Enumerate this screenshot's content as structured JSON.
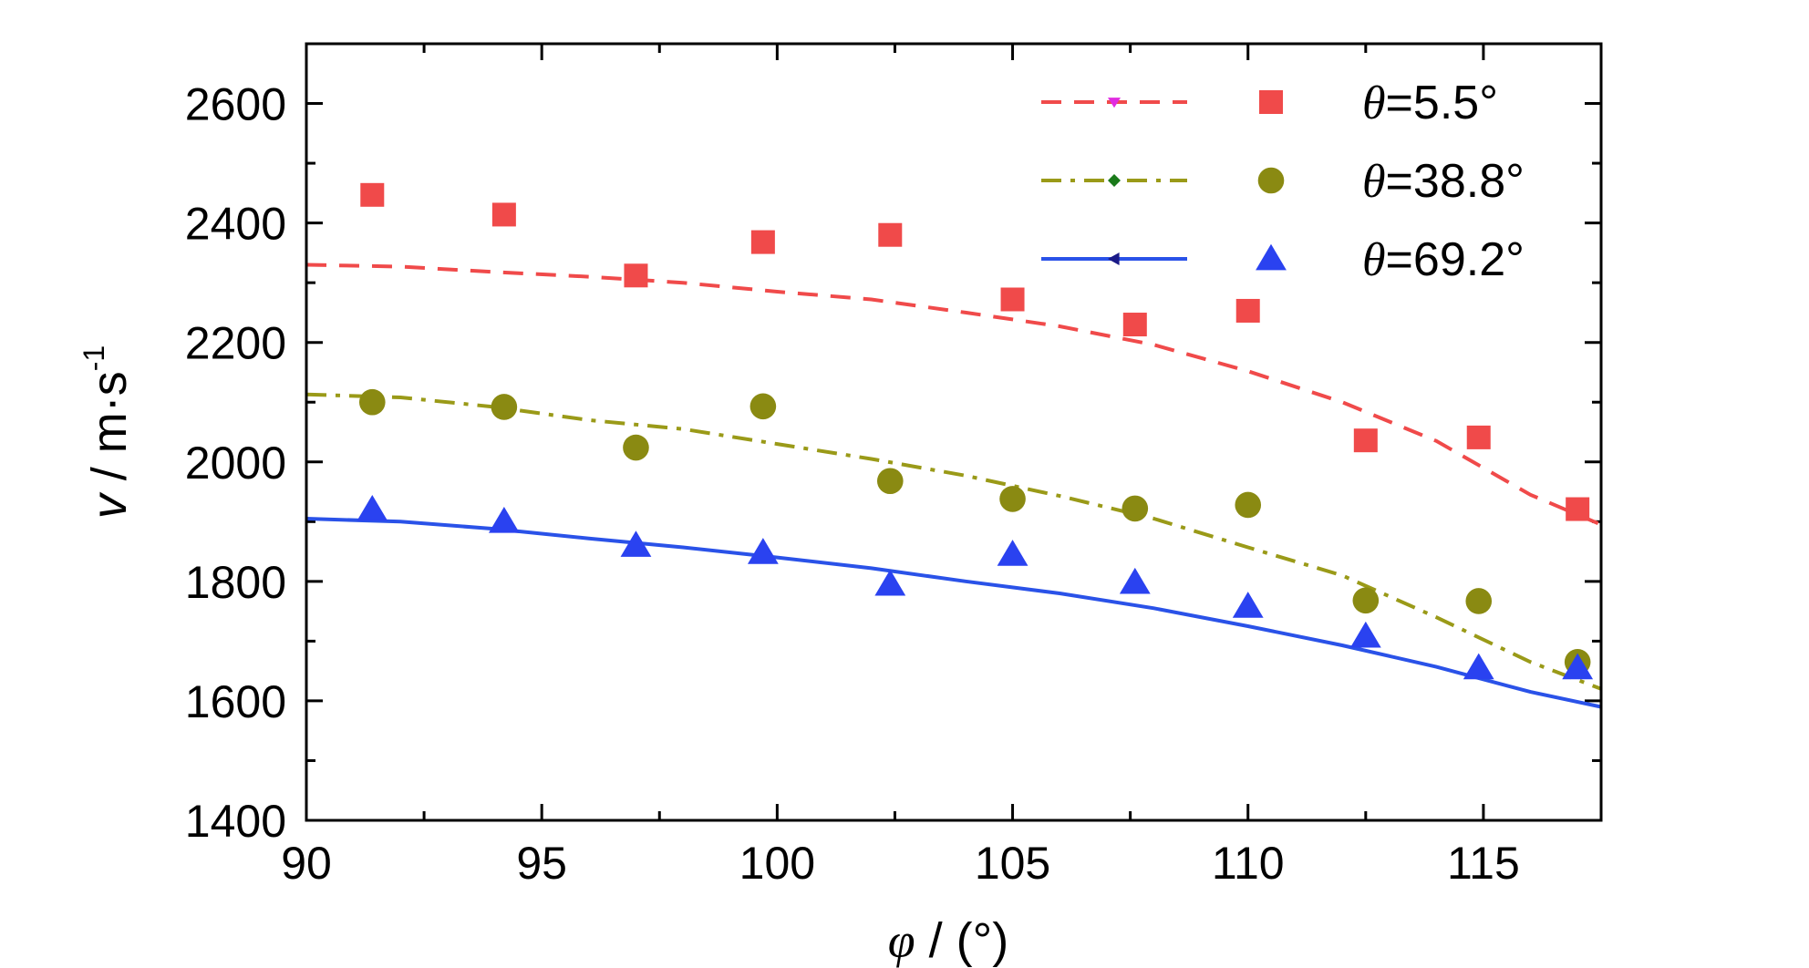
{
  "chart_data": {
    "type": "scatter",
    "xlabel": {
      "symbol": "φ",
      "rest": " / (°)"
    },
    "ylabel": {
      "symbol": "v",
      "rest": " / m·s",
      "sup": "-1"
    },
    "xlim": [
      90,
      117.5
    ],
    "ylim": [
      1400,
      2700
    ],
    "xticks": [
      90,
      95,
      100,
      105,
      110,
      115
    ],
    "yticks": [
      1400,
      1600,
      1800,
      2000,
      2200,
      2400,
      2600
    ],
    "grid": false,
    "legend_position": "top-right",
    "series": [
      {
        "name": "θ=5.5°",
        "legend": {
          "symbol": "θ",
          "rest": "=5.5°"
        },
        "marker": "square",
        "color": "#f04a4a",
        "fit_color": "#f04a4a",
        "fit_marker_color": "#e02be0",
        "fit_marker": "triangle-down",
        "fit_style": "dash",
        "x": [
          91.4,
          94.2,
          97.0,
          99.7,
          102.4,
          105.0,
          107.6,
          110.0,
          112.5,
          114.9,
          117.0
        ],
        "y": [
          2447,
          2414,
          2312,
          2368,
          2380,
          2272,
          2230,
          2253,
          2036,
          2041,
          1921
        ],
        "fit_x": [
          90,
          92,
          94,
          96,
          98,
          100,
          102,
          104,
          106,
          108,
          110,
          112,
          114,
          116,
          117.5
        ],
        "fit_y": [
          2330,
          2327,
          2318,
          2310,
          2300,
          2285,
          2272,
          2250,
          2227,
          2196,
          2152,
          2100,
          2035,
          1945,
          1895
        ]
      },
      {
        "name": "θ=38.8°",
        "legend": {
          "symbol": "θ",
          "rest": "=38.8°"
        },
        "marker": "circle",
        "color": "#8a8a12",
        "fit_color": "#9a9a18",
        "fit_marker_color": "#1a7a1a",
        "fit_marker": "diamond",
        "fit_style": "dashdot",
        "x": [
          91.4,
          94.2,
          97.0,
          99.7,
          102.4,
          105.0,
          107.6,
          110.0,
          112.5,
          114.9,
          117.0
        ],
        "y": [
          2100,
          2092,
          2024,
          2093,
          1968,
          1938,
          1922,
          1928,
          1768,
          1767,
          1665
        ],
        "fit_x": [
          90,
          92,
          94,
          96,
          98,
          100,
          102,
          104,
          106,
          108,
          110,
          112,
          114,
          116,
          117.5
        ],
        "fit_y": [
          2113,
          2108,
          2092,
          2070,
          2055,
          2030,
          2005,
          1977,
          1943,
          1905,
          1857,
          1810,
          1740,
          1665,
          1620
        ]
      },
      {
        "name": "θ=69.2°",
        "legend": {
          "symbol": "θ",
          "rest": "=69.2°"
        },
        "marker": "triangle-up",
        "color": "#2a42f0",
        "fit_color": "#2a52e8",
        "fit_marker_color": "#1a1a88",
        "fit_marker": "triangle-left",
        "fit_style": "solid",
        "x": [
          91.4,
          94.2,
          97.0,
          99.7,
          102.4,
          105.0,
          107.6,
          110.0,
          112.5,
          114.9,
          117.0
        ],
        "y": [
          1920,
          1900,
          1860,
          1848,
          1795,
          1845,
          1798,
          1758,
          1708,
          1655,
          1655
        ],
        "fit_x": [
          90,
          92,
          94,
          96,
          98,
          100,
          102,
          104,
          106,
          108,
          110,
          112,
          114,
          116,
          117.5
        ],
        "fit_y": [
          1905,
          1900,
          1888,
          1872,
          1857,
          1840,
          1822,
          1800,
          1780,
          1755,
          1725,
          1693,
          1657,
          1615,
          1590
        ]
      }
    ]
  }
}
